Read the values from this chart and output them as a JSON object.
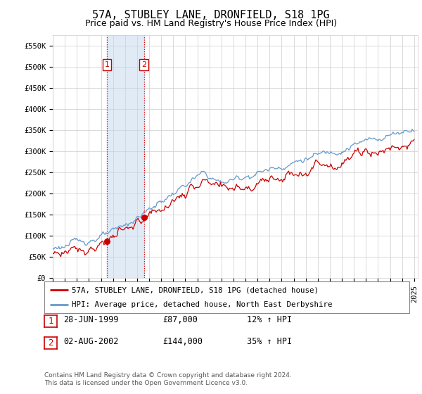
{
  "title": "57A, STUBLEY LANE, DRONFIELD, S18 1PG",
  "subtitle": "Price paid vs. HM Land Registry's House Price Index (HPI)",
  "ylabel_ticks": [
    "£0",
    "£50K",
    "£100K",
    "£150K",
    "£200K",
    "£250K",
    "£300K",
    "£350K",
    "£400K",
    "£450K",
    "£500K",
    "£550K"
  ],
  "ytick_values": [
    0,
    50000,
    100000,
    150000,
    200000,
    250000,
    300000,
    350000,
    400000,
    450000,
    500000,
    550000
  ],
  "ylim": [
    0,
    575000
  ],
  "xlim_start": 1995.0,
  "xlim_end": 2025.3,
  "sale1_x": 1999.49,
  "sale1_y": 87000,
  "sale1_label": "1",
  "sale2_x": 2002.58,
  "sale2_y": 144000,
  "sale2_label": "2",
  "shade_color": "#c5d8ee",
  "shade_alpha": 0.5,
  "vline_color": "#cc0000",
  "vline_style": ":",
  "property_line_color": "#cc0000",
  "hpi_line_color": "#6699cc",
  "legend_property": "57A, STUBLEY LANE, DRONFIELD, S18 1PG (detached house)",
  "legend_hpi": "HPI: Average price, detached house, North East Derbyshire",
  "table_row1": [
    "1",
    "28-JUN-1999",
    "£87,000",
    "12% ↑ HPI"
  ],
  "table_row2": [
    "2",
    "02-AUG-2002",
    "£144,000",
    "35% ↑ HPI"
  ],
  "footer": "Contains HM Land Registry data © Crown copyright and database right 2024.\nThis data is licensed under the Open Government Licence v3.0.",
  "background_color": "#ffffff",
  "grid_color": "#cccccc",
  "title_fontsize": 11,
  "subtitle_fontsize": 9,
  "tick_fontsize": 7.5,
  "fig_width": 6.0,
  "fig_height": 5.6
}
